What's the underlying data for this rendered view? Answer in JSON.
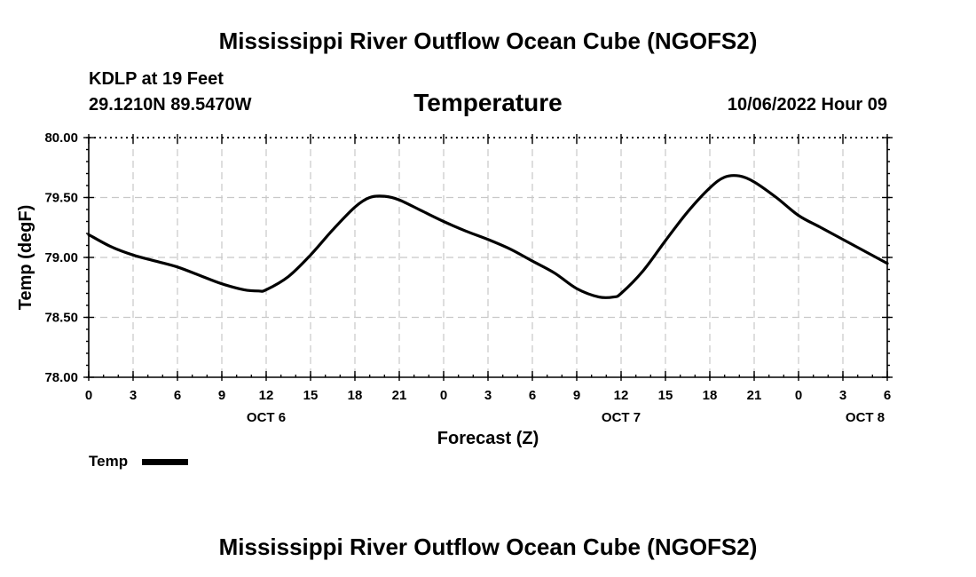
{
  "header": {
    "title": "Mississippi River Outflow Ocean Cube (NGOFS2)",
    "station": "KDLP at 19 Feet",
    "coords": "29.1210N  89.5470W",
    "datetime": "10/06/2022 Hour 09"
  },
  "footer": {
    "title": "Mississippi River Outflow Ocean Cube (NGOFS2)"
  },
  "legend": {
    "label": "Temp"
  },
  "colors": {
    "series": "#000000",
    "grid": "#c8c8c8"
  },
  "chart_data": {
    "type": "line",
    "title": "Temperature",
    "xlabel": "Forecast (Z)",
    "ylabel": "Temp (degF)",
    "ylim": [
      78.0,
      80.0
    ],
    "yticks": [
      "78.00",
      "78.50",
      "79.00",
      "79.50",
      "80.00"
    ],
    "xlim": [
      0,
      54
    ],
    "xtick_labels": [
      "0",
      "3",
      "6",
      "9",
      "12",
      "15",
      "18",
      "21",
      "0",
      "3",
      "6",
      "9",
      "12",
      "15",
      "18",
      "21",
      "0",
      "3",
      "6"
    ],
    "day_labels": [
      {
        "label": "OCT 6",
        "hour": 12
      },
      {
        "label": "OCT 7",
        "hour": 36
      },
      {
        "label": "OCT 8",
        "hour": 52.5
      }
    ],
    "grid": true,
    "legend_position": "bottom-left",
    "series": [
      {
        "name": "Temp",
        "x": [
          0,
          1.5,
          3,
          4.5,
          6,
          7.5,
          9,
          10.5,
          11.5,
          12,
          13.5,
          15,
          16.5,
          18,
          19,
          20,
          21,
          22.5,
          24,
          25.5,
          27,
          28.5,
          30,
          31.5,
          33,
          34.5,
          35.5,
          36,
          37.5,
          39,
          40.5,
          42,
          43,
          44,
          45,
          46.5,
          48,
          49.5,
          51,
          52.5,
          54
        ],
        "values": [
          79.19,
          79.09,
          79.02,
          78.97,
          78.92,
          78.85,
          78.78,
          78.73,
          78.72,
          78.73,
          78.84,
          79.02,
          79.23,
          79.42,
          79.5,
          79.51,
          79.48,
          79.39,
          79.3,
          79.22,
          79.15,
          79.07,
          78.97,
          78.87,
          78.74,
          78.67,
          78.67,
          78.7,
          78.89,
          79.14,
          79.38,
          79.58,
          79.67,
          79.68,
          79.63,
          79.5,
          79.35,
          79.25,
          79.15,
          79.05,
          78.95
        ]
      }
    ]
  }
}
